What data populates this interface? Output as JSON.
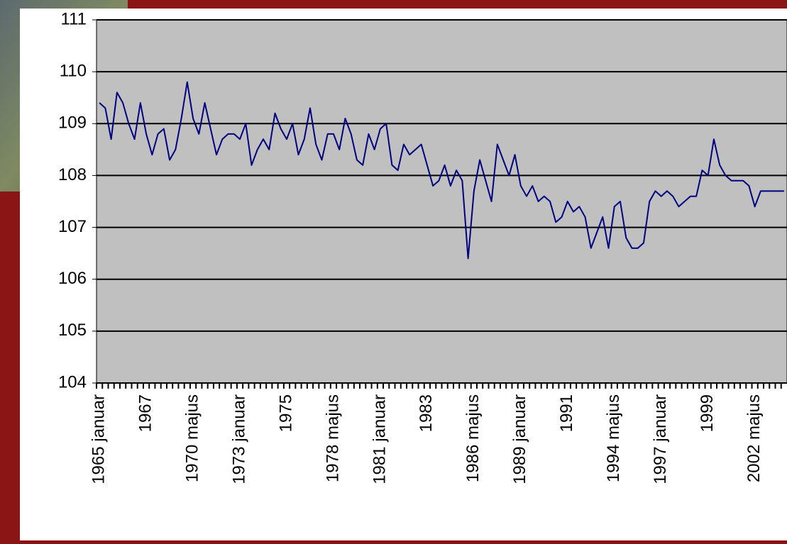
{
  "chart_data": {
    "type": "line",
    "categories": [
      "1965 januar",
      null,
      null,
      null,
      null,
      null,
      null,
      null,
      "1967",
      null,
      null,
      null,
      null,
      null,
      null,
      null,
      "1970 majus",
      null,
      null,
      null,
      null,
      null,
      null,
      null,
      "1973 januar",
      null,
      null,
      null,
      null,
      null,
      null,
      null,
      "1975",
      null,
      null,
      null,
      null,
      null,
      null,
      null,
      "1978 majus",
      null,
      null,
      null,
      null,
      null,
      null,
      null,
      "1981 januar",
      null,
      null,
      null,
      null,
      null,
      null,
      null,
      "1983",
      null,
      null,
      null,
      null,
      null,
      null,
      null,
      "1986 majus",
      null,
      null,
      null,
      null,
      null,
      null,
      null,
      "1989 januar",
      null,
      null,
      null,
      null,
      null,
      null,
      null,
      "1991",
      null,
      null,
      null,
      null,
      null,
      null,
      null,
      "1994 majus",
      null,
      null,
      null,
      null,
      null,
      null,
      null,
      "1997 januar",
      null,
      null,
      null,
      null,
      null,
      null,
      null,
      "1999",
      null,
      null,
      null,
      null,
      null,
      null,
      null,
      "2002 majus",
      null,
      null,
      null,
      null,
      null
    ],
    "values": [
      109.4,
      109.3,
      108.7,
      109.6,
      109.4,
      109.0,
      108.7,
      109.4,
      108.8,
      108.4,
      108.8,
      108.9,
      108.3,
      108.5,
      109.1,
      109.8,
      109.1,
      108.8,
      109.4,
      108.9,
      108.4,
      108.7,
      108.8,
      108.8,
      108.7,
      109.0,
      108.2,
      108.5,
      108.7,
      108.5,
      109.2,
      108.9,
      108.7,
      109.0,
      108.4,
      108.7,
      109.3,
      108.6,
      108.3,
      108.8,
      108.8,
      108.5,
      109.1,
      108.8,
      108.3,
      108.2,
      108.8,
      108.5,
      108.9,
      109.0,
      108.2,
      108.1,
      108.6,
      108.4,
      108.5,
      108.6,
      108.2,
      107.8,
      107.9,
      108.2,
      107.8,
      108.1,
      107.9,
      106.4,
      107.7,
      108.3,
      107.9,
      107.5,
      108.6,
      108.3,
      108.0,
      108.4,
      107.8,
      107.6,
      107.8,
      107.5,
      107.6,
      107.5,
      107.1,
      107.2,
      107.5,
      107.3,
      107.4,
      107.2,
      106.6,
      106.9,
      107.2,
      106.6,
      107.4,
      107.5,
      106.8,
      106.6,
      106.6,
      106.7,
      107.5,
      107.7,
      107.6,
      107.7,
      107.6,
      107.4,
      107.5,
      107.6,
      107.6,
      108.1,
      108.0,
      108.7,
      108.2,
      108.0,
      107.9,
      107.9,
      107.9,
      107.8,
      107.4,
      107.7,
      107.7,
      107.7,
      107.7,
      107.7
    ],
    "color": "#000080",
    "ylim": [
      104,
      111
    ],
    "yticks": [
      104,
      105,
      106,
      107,
      108,
      109,
      110,
      111
    ],
    "grid": true
  }
}
